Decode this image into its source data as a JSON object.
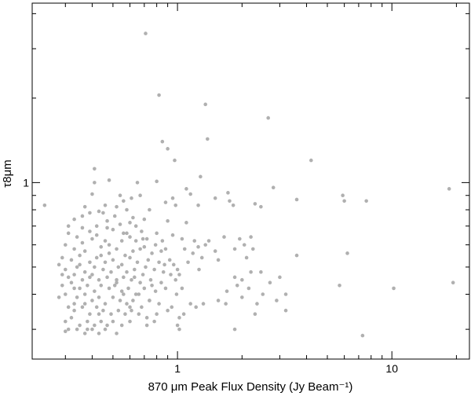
{
  "chart_data": {
    "type": "scatter",
    "title": "",
    "xlabel": "870 μm Peak Flux Density (Jy Beam⁻¹)",
    "ylabel": "τ8μm",
    "x_scale": "log",
    "y_scale": "log",
    "xlim": [
      0.21,
      23
    ],
    "ylim": [
      0.235,
      4.36
    ],
    "x_tick_labels": [
      {
        "value": 1,
        "label": "1"
      },
      {
        "value": 10,
        "label": "10"
      }
    ],
    "y_tick_labels": [
      {
        "value": 1,
        "label": "1"
      }
    ],
    "marker_color": "#b0b0b0",
    "grid": false,
    "series": [
      {
        "points": [
          [
            0.24,
            0.83
          ],
          [
            0.71,
            3.4
          ],
          [
            0.82,
            2.05
          ],
          [
            1.35,
            1.9
          ],
          [
            2.65,
            1.7
          ],
          [
            0.85,
            1.4
          ],
          [
            1.38,
            1.43
          ],
          [
            0.9,
            1.32
          ],
          [
            4.2,
            1.2
          ],
          [
            0.97,
            1.2
          ],
          [
            0.41,
            1.12
          ],
          [
            1.28,
            1.05
          ],
          [
            0.48,
            1.02
          ],
          [
            0.65,
            1.0
          ],
          [
            0.8,
            1.01
          ],
          [
            2.8,
            0.96
          ],
          [
            18.5,
            0.95
          ],
          [
            0.41,
            1.0
          ],
          [
            1.1,
            0.95
          ],
          [
            0.4,
            0.91
          ],
          [
            0.67,
            0.9
          ],
          [
            0.61,
            0.88
          ],
          [
            1.15,
            0.91
          ],
          [
            1.5,
            0.88
          ],
          [
            1.72,
            0.92
          ],
          [
            5.9,
            0.9
          ],
          [
            6.0,
            0.86
          ],
          [
            7.6,
            0.86
          ],
          [
            3.6,
            0.87
          ],
          [
            0.95,
            0.88
          ],
          [
            1.75,
            0.86
          ],
          [
            1.82,
            0.83
          ],
          [
            2.3,
            0.84
          ],
          [
            2.45,
            0.82
          ],
          [
            0.54,
            0.9
          ],
          [
            0.56,
            0.86
          ],
          [
            0.88,
            0.85
          ],
          [
            0.98,
            0.83
          ],
          [
            1.25,
            0.83
          ],
          [
            0.46,
            0.83
          ],
          [
            0.37,
            0.82
          ],
          [
            0.52,
            0.82
          ],
          [
            0.58,
            0.8
          ],
          [
            0.74,
            0.8
          ],
          [
            0.43,
            0.79
          ],
          [
            0.39,
            0.78
          ],
          [
            0.36,
            0.76
          ],
          [
            0.62,
            0.75
          ],
          [
            0.7,
            0.74
          ],
          [
            0.9,
            0.73
          ],
          [
            1.1,
            0.72
          ],
          [
            0.33,
            0.74
          ],
          [
            0.47,
            0.73
          ],
          [
            0.54,
            0.71
          ],
          [
            0.64,
            0.7
          ],
          [
            0.31,
            0.7
          ],
          [
            0.42,
            0.7
          ],
          [
            0.36,
            0.69
          ],
          [
            0.5,
            0.68
          ],
          [
            0.58,
            0.66
          ],
          [
            0.68,
            0.67
          ],
          [
            0.8,
            0.66
          ],
          [
            0.31,
            0.66
          ],
          [
            0.34,
            0.64
          ],
          [
            0.4,
            0.63
          ],
          [
            0.46,
            0.62
          ],
          [
            0.55,
            0.62
          ],
          [
            0.6,
            0.64
          ],
          [
            0.72,
            0.63
          ],
          [
            0.85,
            0.62
          ],
          [
            0.95,
            0.65
          ],
          [
            1.05,
            0.63
          ],
          [
            1.2,
            0.62
          ],
          [
            1.4,
            0.62
          ],
          [
            1.65,
            0.64
          ],
          [
            1.95,
            0.63
          ],
          [
            2.2,
            0.64
          ],
          [
            0.3,
            0.6
          ],
          [
            0.33,
            0.58
          ],
          [
            0.37,
            0.57
          ],
          [
            0.44,
            0.59
          ],
          [
            0.48,
            0.56
          ],
          [
            0.52,
            0.58
          ],
          [
            0.62,
            0.57
          ],
          [
            0.7,
            0.59
          ],
          [
            0.76,
            0.56
          ],
          [
            0.88,
            0.58
          ],
          [
            1.08,
            0.58
          ],
          [
            1.25,
            0.59
          ],
          [
            1.35,
            0.6
          ],
          [
            1.5,
            0.57
          ],
          [
            1.85,
            0.58
          ],
          [
            2.05,
            0.6
          ],
          [
            2.25,
            0.58
          ],
          [
            6.2,
            0.56
          ],
          [
            3.6,
            0.55
          ],
          [
            0.29,
            0.54
          ],
          [
            0.32,
            0.53
          ],
          [
            0.35,
            0.55
          ],
          [
            0.39,
            0.52
          ],
          [
            0.42,
            0.54
          ],
          [
            0.46,
            0.52
          ],
          [
            0.5,
            0.53
          ],
          [
            0.55,
            0.51
          ],
          [
            0.6,
            0.54
          ],
          [
            0.65,
            0.52
          ],
          [
            0.73,
            0.53
          ],
          [
            0.82,
            0.52
          ],
          [
            0.96,
            0.51
          ],
          [
            1.12,
            0.52
          ],
          [
            1.3,
            0.54
          ],
          [
            1.55,
            0.53
          ],
          [
            2.1,
            0.54
          ],
          [
            0.28,
            0.51
          ],
          [
            0.3,
            0.49
          ],
          [
            0.34,
            0.5
          ],
          [
            0.37,
            0.48
          ],
          [
            0.41,
            0.5
          ],
          [
            0.45,
            0.49
          ],
          [
            0.49,
            0.48
          ],
          [
            0.53,
            0.5
          ],
          [
            0.58,
            0.48
          ],
          [
            0.63,
            0.49
          ],
          [
            0.69,
            0.47
          ],
          [
            0.78,
            0.49
          ],
          [
            0.86,
            0.48
          ],
          [
            0.93,
            0.47
          ],
          [
            1.0,
            0.49
          ],
          [
            2.2,
            0.48
          ],
          [
            2.45,
            0.48
          ],
          [
            0.31,
            0.46
          ],
          [
            0.33,
            0.47
          ],
          [
            0.36,
            0.45
          ],
          [
            0.39,
            0.46
          ],
          [
            0.43,
            0.45
          ],
          [
            0.47,
            0.46
          ],
          [
            0.52,
            0.45
          ],
          [
            0.56,
            0.46
          ],
          [
            0.61,
            0.45
          ],
          [
            0.67,
            0.44
          ],
          [
            0.75,
            0.45
          ],
          [
            0.84,
            0.44
          ],
          [
            0.98,
            0.45
          ],
          [
            1.02,
            0.47
          ],
          [
            1.85,
            0.46
          ],
          [
            2.0,
            0.45
          ],
          [
            2.7,
            0.44
          ],
          [
            3.0,
            0.46
          ],
          [
            5.7,
            0.43
          ],
          [
            10.2,
            0.42
          ],
          [
            19.3,
            0.44
          ],
          [
            0.29,
            0.43
          ],
          [
            0.32,
            0.44
          ],
          [
            0.35,
            0.42
          ],
          [
            0.38,
            0.43
          ],
          [
            0.41,
            0.41
          ],
          [
            0.44,
            0.43
          ],
          [
            0.48,
            0.42
          ],
          [
            0.51,
            0.43
          ],
          [
            0.55,
            0.41
          ],
          [
            0.59,
            0.42
          ],
          [
            0.64,
            0.4
          ],
          [
            0.7,
            0.42
          ],
          [
            0.79,
            0.41
          ],
          [
            0.88,
            0.42
          ],
          [
            0.99,
            0.4
          ],
          [
            1.7,
            0.41
          ],
          [
            1.9,
            0.43
          ],
          [
            2.15,
            0.42
          ],
          [
            2.5,
            0.4
          ],
          [
            3.2,
            0.4
          ],
          [
            0.3,
            0.4
          ],
          [
            0.34,
            0.39
          ],
          [
            0.37,
            0.4
          ],
          [
            0.4,
            0.38
          ],
          [
            0.43,
            0.39
          ],
          [
            0.46,
            0.37
          ],
          [
            0.5,
            0.39
          ],
          [
            0.54,
            0.38
          ],
          [
            0.58,
            0.37
          ],
          [
            0.62,
            0.38
          ],
          [
            0.68,
            0.36
          ],
          [
            0.74,
            0.38
          ],
          [
            0.82,
            0.37
          ],
          [
            0.94,
            0.36
          ],
          [
            1.15,
            0.37
          ],
          [
            1.22,
            0.36
          ],
          [
            1.32,
            0.37
          ],
          [
            1.55,
            0.38
          ],
          [
            1.68,
            0.37
          ],
          [
            2.0,
            0.39
          ],
          [
            2.35,
            0.37
          ],
          [
            2.9,
            0.38
          ],
          [
            0.31,
            0.36
          ],
          [
            0.33,
            0.35
          ],
          [
            0.36,
            0.36
          ],
          [
            0.39,
            0.34
          ],
          [
            0.42,
            0.36
          ],
          [
            0.45,
            0.35
          ],
          [
            0.49,
            0.34
          ],
          [
            0.53,
            0.35
          ],
          [
            0.57,
            0.34
          ],
          [
            0.61,
            0.35
          ],
          [
            0.66,
            0.34
          ],
          [
            0.72,
            0.33
          ],
          [
            0.8,
            0.34
          ],
          [
            0.9,
            0.35
          ],
          [
            1.02,
            0.33
          ],
          [
            1.07,
            0.34
          ],
          [
            2.3,
            0.34
          ],
          [
            3.2,
            0.35
          ],
          [
            0.3,
            0.32
          ],
          [
            0.32,
            0.33
          ],
          [
            0.35,
            0.31
          ],
          [
            0.38,
            0.32
          ],
          [
            0.41,
            0.31
          ],
          [
            0.44,
            0.32
          ],
          [
            0.47,
            0.31
          ],
          [
            0.5,
            0.32
          ],
          [
            0.55,
            0.31
          ],
          [
            0.6,
            0.32
          ],
          [
            0.72,
            0.31
          ],
          [
            0.78,
            0.32
          ],
          [
            1.0,
            0.31
          ],
          [
            0.31,
            0.3
          ],
          [
            0.34,
            0.3
          ],
          [
            0.37,
            0.29
          ],
          [
            0.4,
            0.3
          ],
          [
            0.43,
            0.29
          ],
          [
            0.46,
            0.3
          ],
          [
            0.52,
            0.29
          ],
          [
            1.02,
            0.3
          ],
          [
            1.85,
            0.3
          ],
          [
            0.3,
            0.295
          ],
          [
            0.38,
            0.3
          ],
          [
            7.3,
            0.285
          ],
          [
            0.35,
            0.51
          ],
          [
            0.4,
            0.47
          ],
          [
            0.44,
            0.55
          ],
          [
            0.48,
            0.6
          ],
          [
            0.52,
            0.44
          ],
          [
            0.56,
            0.4
          ],
          [
            0.6,
            0.36
          ],
          [
            0.64,
            0.62
          ],
          [
            0.67,
            0.58
          ],
          [
            0.71,
            0.5
          ],
          [
            0.76,
            0.43
          ],
          [
            0.79,
            0.6
          ],
          [
            0.84,
            0.57
          ],
          [
            0.87,
            0.51
          ],
          [
            0.92,
            0.53
          ],
          [
            1.05,
            0.42
          ],
          [
            1.18,
            0.56
          ],
          [
            1.26,
            0.49
          ],
          [
            0.29,
            0.47
          ],
          [
            0.33,
            0.42
          ],
          [
            0.42,
            0.65
          ],
          [
            0.36,
            0.61
          ],
          [
            0.47,
            0.69
          ],
          [
            0.56,
            0.66
          ],
          [
            0.6,
            0.72
          ],
          [
            0.69,
            0.63
          ],
          [
            0.51,
            0.76
          ],
          [
            0.45,
            0.78
          ],
          [
            0.39,
            0.67
          ],
          [
            0.57,
            0.55
          ],
          [
            0.63,
            0.46
          ],
          [
            0.66,
            0.4
          ],
          [
            0.74,
            0.38
          ],
          [
            0.43,
            0.34
          ],
          [
            0.37,
            0.37
          ],
          [
            0.33,
            0.37
          ],
          [
            0.28,
            0.39
          ]
        ]
      }
    ]
  }
}
